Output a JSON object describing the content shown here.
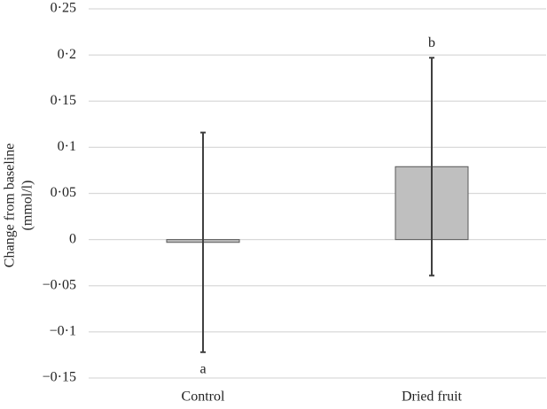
{
  "chart_data": {
    "type": "bar",
    "y_label": [
      "Change from baseline",
      "(mmol/l)"
    ],
    "categories": [
      "Control",
      "Dried fruit"
    ],
    "values": [
      -0.003,
      0.079
    ],
    "errors": [
      0.119,
      0.118
    ],
    "annotations": [
      "a",
      "b"
    ],
    "color": "#bfbfbf",
    "ylim": [
      -0.15,
      0.25
    ],
    "yticks": [
      {
        "value": -0.15,
        "label": "−0·15"
      },
      {
        "value": -0.1,
        "label": "−0·1"
      },
      {
        "value": -0.05,
        "label": "−0·05"
      },
      0,
      {
        "value": 0.05,
        "label": "0·05"
      },
      {
        "value": 0.1,
        "label": "0·1"
      },
      {
        "value": 0.15,
        "label": "0·15"
      },
      {
        "value": 0.2,
        "label": "0·2"
      },
      {
        "value": 0.25,
        "label": "0·25"
      }
    ],
    "grid": true
  }
}
